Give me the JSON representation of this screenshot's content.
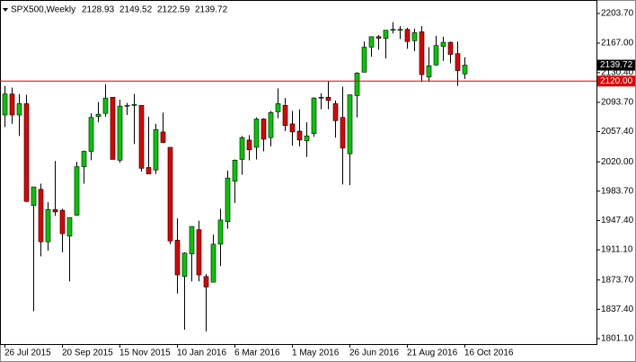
{
  "chart_data": {
    "type": "candlestick",
    "title": "SPX500,Weekly",
    "categories": [
      "26 Jul 2015",
      null,
      null,
      null,
      null,
      null,
      null,
      null,
      "20 Sep 2015",
      null,
      null,
      null,
      null,
      null,
      null,
      null,
      "15 Nov 2015",
      null,
      null,
      null,
      null,
      null,
      null,
      null,
      "10 Jan 2016",
      null,
      null,
      null,
      null,
      null,
      null,
      null,
      "6 Mar 2016",
      null,
      null,
      null,
      null,
      null,
      null,
      null,
      "1 May 2016",
      null,
      null,
      null,
      null,
      null,
      null,
      null,
      "26 Jun 2016",
      null,
      null,
      null,
      null,
      null,
      null,
      null,
      "21 Aug 2016",
      null,
      null,
      null,
      null,
      null,
      null,
      null,
      "16 Oct 2016"
    ],
    "open": [
      2078,
      2104,
      2078,
      2092,
      1966,
      1986,
      1921,
      1961,
      1960,
      1928,
      1954,
      2014,
      2033,
      2076,
      2080,
      2100,
      2022,
      2090,
      2090,
      2090,
      2013,
      2010,
      2057,
      2038,
      1923,
      1878,
      1906,
      1936,
      1878,
      1871,
      1918,
      1946,
      1996,
      2023,
      2047,
      2038,
      2073,
      2050,
      2082,
      2090,
      2067,
      2058,
      2046,
      2055,
      2100,
      2100,
      2092,
      2075,
      2030,
      2102,
      2131,
      2162,
      2175,
      2173,
      2183,
      2184,
      2184,
      2170,
      2181,
      2125,
      2140,
      2163,
      2168,
      2154,
      2128.93
    ],
    "high": [
      2114,
      2112,
      2104,
      2103,
      1989,
      1993,
      1970,
      2021,
      1962,
      1951,
      2020,
      2034,
      2080,
      2094,
      2116,
      2100,
      2097,
      2093,
      2104,
      2090,
      2076,
      2067,
      2081,
      2038,
      1950,
      1908,
      1940,
      1947,
      1881,
      1930,
      1962,
      2009,
      2023,
      2052,
      2053,
      2075,
      2074,
      2083,
      2111,
      2099,
      2083,
      2085,
      2069,
      2100,
      2105,
      2120,
      2096,
      2113,
      2102,
      2131,
      2169,
      2175,
      2177,
      2183,
      2193,
      2188,
      2186,
      2185,
      2188,
      2162,
      2176,
      2175,
      2169,
      2169,
      2149.52
    ],
    "low": [
      2063,
      2067,
      2052,
      1970,
      1835,
      1903,
      1910,
      1953,
      1908,
      1872,
      1953,
      1993,
      2022,
      2069,
      2076,
      2023,
      2019,
      2078,
      2042,
      2008,
      2005,
      2005,
      2043,
      1918,
      1857,
      1812,
      1872,
      1872,
      1810,
      1871,
      1891,
      1937,
      1969,
      2004,
      2022,
      2023,
      2033,
      2039,
      2074,
      2058,
      2040,
      2039,
      2026,
      2051,
      2085,
      2085,
      2050,
      1992,
      1991,
      2075,
      2131,
      2150,
      2159,
      2148,
      2179,
      2172,
      2160,
      2157,
      2119,
      2119,
      2139,
      2145,
      2142,
      2114,
      2122.59
    ],
    "close": [
      2104,
      2078,
      2092,
      1971,
      1989,
      1921,
      1961,
      1958,
      1931,
      1951,
      2014,
      2033,
      2075,
      2079,
      2099,
      2023,
      2089,
      2090,
      2091,
      2012,
      2005,
      2060,
      2044,
      1922,
      1880,
      1907,
      1940,
      1880,
      1865,
      1918,
      1948,
      2000,
      2022,
      2050,
      2035,
      2073,
      2048,
      2081,
      2092,
      2065,
      2057,
      2047,
      2052,
      2099,
      2099,
      2096,
      2071,
      2037,
      2103,
      2130,
      2162,
      2175,
      2173,
      2183,
      2184,
      2184,
      2169,
      2180,
      2128,
      2139,
      2164,
      2168,
      2153,
      2133,
      2139.72
    ],
    "up_color": "#00c800",
    "down_color": "#e00000",
    "wick_color": "#000000",
    "ylim": [
      1794.4,
      2220.4
    ],
    "yticks": [
      {
        "value": 1801.1,
        "label": "1801.10"
      },
      {
        "value": 1837.4,
        "label": "1837.40"
      },
      {
        "value": 1873.7,
        "label": "1873.70"
      },
      {
        "value": 1911.1,
        "label": "1911.10"
      },
      {
        "value": 1947.4,
        "label": "1947.40"
      },
      {
        "value": 1983.7,
        "label": "1983.70"
      },
      {
        "value": 2020,
        "label": "2020.00"
      },
      {
        "value": 2057.4,
        "label": "2057.40"
      },
      {
        "value": 2093.7,
        "label": "2093.70"
      },
      {
        "value": 2130.4,
        "label": "2130.40"
      },
      {
        "value": 2167,
        "label": "2167.00"
      },
      {
        "value": 2203.7,
        "label": "2203.70"
      }
    ],
    "hline": {
      "value": 2120,
      "label": "2120.00",
      "color": "#e00000"
    }
  }
}
